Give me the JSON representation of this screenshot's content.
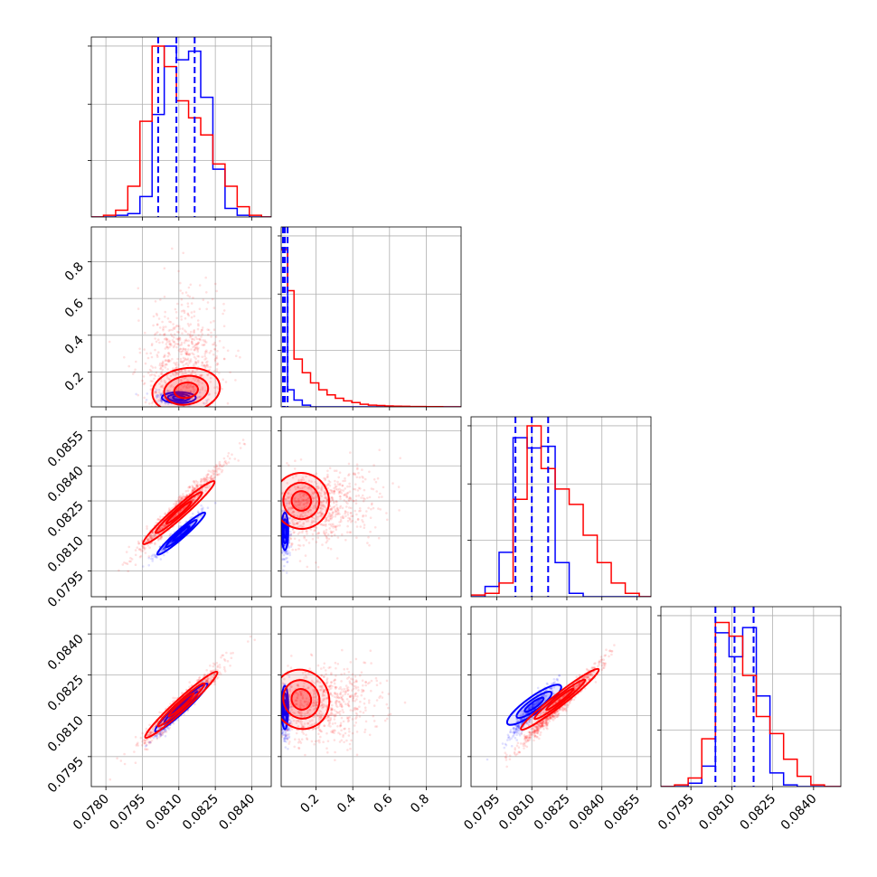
{
  "chart_data": {
    "type": "corner",
    "grid": true,
    "series": [
      {
        "color_name": "blue",
        "color": "#0000ff"
      },
      {
        "color_name": "red",
        "color": "#ff0000"
      }
    ],
    "params": [
      {
        "ticks": [
          "0.0780",
          "0.0795",
          "0.0810",
          "0.0825",
          "0.0840"
        ],
        "range": [
          0.0774,
          0.0848
        ]
      },
      {
        "ticks": [
          "0.2",
          "0.4",
          "0.6",
          "0.8"
        ],
        "range": [
          0.01,
          0.99
        ]
      },
      {
        "ticks": [
          "0.0795",
          "0.0810",
          "0.0825",
          "0.0840",
          "0.0855"
        ],
        "range": [
          0.0784,
          0.0861
        ]
      },
      {
        "ticks": [
          "0.0795",
          "0.0810",
          "0.0825",
          "0.0840"
        ],
        "range": [
          0.0784,
          0.085
        ]
      }
    ],
    "quantile_lines": [
      {
        "param": 0,
        "color": "#0000ff",
        "values": [
          0.08015,
          0.0809,
          0.08165
        ]
      },
      {
        "param": 1,
        "color": "#0000ff",
        "values": [
          0.02,
          0.03,
          0.045
        ]
      },
      {
        "param": 2,
        "color": "#0000ff",
        "values": [
          0.0803,
          0.081,
          0.0817
        ]
      },
      {
        "param": 3,
        "color": "#0000ff",
        "values": [
          0.0804,
          0.0811,
          0.0818
        ]
      }
    ],
    "histograms": [
      {
        "param": 0,
        "edges": [
          0.0774,
          0.0779,
          0.0784,
          0.0789,
          0.0794,
          0.0799,
          0.0804,
          0.0809,
          0.0814,
          0.0819,
          0.0824,
          0.0829,
          0.0834,
          0.0839,
          0.0844,
          0.0848
        ],
        "series": [
          {
            "color": "#0000ff",
            "counts": [
              0,
              0,
              0.01,
              0.02,
              0.12,
              0.6,
              1.0,
              0.92,
              0.97,
              0.7,
              0.28,
              0.05,
              0.01,
              0,
              0
            ]
          },
          {
            "color": "#ff0000",
            "counts": [
              0,
              0.01,
              0.04,
              0.18,
              0.56,
              1.0,
              0.88,
              0.68,
              0.58,
              0.48,
              0.31,
              0.18,
              0.06,
              0.01,
              0
            ]
          }
        ]
      },
      {
        "param": 1,
        "edges": [
          0.01,
          0.045,
          0.08,
          0.125,
          0.17,
          0.215,
          0.26,
          0.305,
          0.35,
          0.395,
          0.44,
          0.485,
          0.53,
          0.575,
          0.62,
          0.665,
          0.71,
          0.755,
          0.8,
          0.845,
          0.89,
          0.935,
          0.99
        ],
        "series": [
          {
            "color": "#0000ff",
            "counts": [
              0.93,
              0.1,
              0.04,
              0.01,
              0,
              0,
              0,
              0,
              0,
              0,
              0,
              0,
              0,
              0,
              0,
              0,
              0,
              0,
              0,
              0,
              0,
              0
            ]
          },
          {
            "color": "#ff0000",
            "counts": [
              0.92,
              0.68,
              0.28,
              0.2,
              0.14,
              0.1,
              0.07,
              0.05,
              0.035,
              0.025,
              0.015,
              0.01,
              0.008,
              0.005,
              0.004,
              0.003,
              0.002,
              0.002,
              0.001,
              0.001,
              0,
              0
            ]
          }
        ]
      },
      {
        "param": 2,
        "edges": [
          0.0784,
          0.079,
          0.0796,
          0.0802,
          0.0808,
          0.0814,
          0.082,
          0.0826,
          0.0832,
          0.0838,
          0.0844,
          0.085,
          0.0856,
          0.0861
        ],
        "series": [
          {
            "color": "#0000ff",
            "counts": [
              0,
              0.06,
              0.26,
              0.93,
              0.87,
              0.88,
              0.2,
              0.02,
              0,
              0,
              0,
              0,
              0
            ]
          },
          {
            "color": "#ff0000",
            "counts": [
              0.01,
              0.02,
              0.08,
              0.57,
              1.0,
              0.75,
              0.63,
              0.54,
              0.36,
              0.2,
              0.08,
              0.02,
              0
            ]
          }
        ]
      },
      {
        "param": 3,
        "edges": [
          0.0784,
          0.0789,
          0.0794,
          0.0799,
          0.0804,
          0.0809,
          0.0814,
          0.0819,
          0.0824,
          0.0829,
          0.0834,
          0.0839,
          0.0844,
          0.085
        ],
        "series": [
          {
            "color": "#0000ff",
            "counts": [
              0,
              0,
              0.02,
              0.12,
              0.9,
              0.76,
              0.93,
              0.53,
              0.08,
              0.01,
              0,
              0,
              0
            ]
          },
          {
            "color": "#ff0000",
            "counts": [
              0,
              0.01,
              0.05,
              0.28,
              0.96,
              0.88,
              0.65,
              0.41,
              0.31,
              0.16,
              0.06,
              0.01,
              0
            ]
          }
        ]
      }
    ],
    "scatter_clouds": [
      {
        "row": 1,
        "col": 0,
        "color": "#0000ff",
        "mean": [
          0.0809,
          0.06
        ],
        "sd": [
          0.00045,
          0.02
        ],
        "corr": 0.0,
        "n": 260
      },
      {
        "row": 1,
        "col": 0,
        "color": "#ff0000",
        "mean": [
          0.0811,
          0.22
        ],
        "sd": [
          0.00085,
          0.18
        ],
        "corr": 0.1,
        "n": 750
      },
      {
        "row": 2,
        "col": 0,
        "color": "#0000ff",
        "mean": [
          0.0809,
          0.081
        ],
        "sd": [
          0.00045,
          0.00045
        ],
        "corr": 0.97,
        "n": 420
      },
      {
        "row": 2,
        "col": 0,
        "color": "#ff0000",
        "mean": [
          0.08105,
          0.0822
        ],
        "sd": [
          0.00085,
          0.0009
        ],
        "corr": 0.97,
        "n": 850
      },
      {
        "row": 2,
        "col": 1,
        "color": "#0000ff",
        "mean": [
          0.03,
          0.0811
        ],
        "sd": [
          0.015,
          0.0005
        ],
        "corr": 0.0,
        "n": 320
      },
      {
        "row": 2,
        "col": 1,
        "color": "#ff0000",
        "mean": [
          0.22,
          0.0822
        ],
        "sd": [
          0.15,
          0.0008
        ],
        "corr": 0.25,
        "n": 780
      },
      {
        "row": 3,
        "col": 0,
        "color": "#0000ff",
        "mean": [
          0.0809,
          0.0811
        ],
        "sd": [
          0.00045,
          0.00045
        ],
        "corr": 0.96,
        "n": 400
      },
      {
        "row": 3,
        "col": 0,
        "color": "#ff0000",
        "mean": [
          0.0811,
          0.0814
        ],
        "sd": [
          0.00085,
          0.00075
        ],
        "corr": 0.97,
        "n": 850
      },
      {
        "row": 3,
        "col": 1,
        "color": "#0000ff",
        "mean": [
          0.03,
          0.0811
        ],
        "sd": [
          0.015,
          0.0005
        ],
        "corr": 0.0,
        "n": 300
      },
      {
        "row": 3,
        "col": 1,
        "color": "#ff0000",
        "mean": [
          0.22,
          0.0814
        ],
        "sd": [
          0.15,
          0.0007
        ],
        "corr": 0.25,
        "n": 760
      },
      {
        "row": 3,
        "col": 2,
        "color": "#0000ff",
        "mean": [
          0.0809,
          0.0811
        ],
        "sd": [
          0.00045,
          0.00048
        ],
        "corr": 0.93,
        "n": 450
      },
      {
        "row": 3,
        "col": 2,
        "color": "#ff0000",
        "mean": [
          0.0822,
          0.0814
        ],
        "sd": [
          0.00085,
          0.00075
        ],
        "corr": 0.98,
        "n": 900
      }
    ],
    "contours": [
      {
        "row": 1,
        "col": 0,
        "color": "#0000ff",
        "center": [
          0.081,
          0.06
        ],
        "radii": [
          0.0007,
          0.03
        ],
        "angle": 0,
        "scales": [
          1.0,
          0.65,
          0.35
        ]
      },
      {
        "row": 1,
        "col": 0,
        "color": "#ff0000",
        "center": [
          0.0813,
          0.1
        ],
        "radii": [
          0.0014,
          0.12
        ],
        "angle": 0.15,
        "scales": [
          1.0,
          0.65,
          0.35
        ]
      },
      {
        "row": 2,
        "col": 0,
        "color": "#0000ff",
        "center": [
          0.0811,
          0.0811
        ],
        "radii": [
          0.0013,
          0.00018
        ],
        "angle": 0.72,
        "scales": [
          1.0,
          0.65,
          0.35
        ]
      },
      {
        "row": 2,
        "col": 0,
        "color": "#ff0000",
        "center": [
          0.081,
          0.082
        ],
        "radii": [
          0.00195,
          0.00025
        ],
        "angle": 0.72,
        "scales": [
          1.0,
          0.65,
          0.35
        ]
      },
      {
        "row": 2,
        "col": 1,
        "color": "#0000ff",
        "center": [
          0.03,
          0.0812
        ],
        "radii": [
          0.018,
          0.0008
        ],
        "angle": 0,
        "scales": [
          1.0,
          0.65,
          0.35
        ]
      },
      {
        "row": 2,
        "col": 1,
        "color": "#ff0000",
        "center": [
          0.12,
          0.0825
        ],
        "radii": [
          0.15,
          0.0012
        ],
        "angle": 0.4,
        "scales": [
          1.0,
          0.65,
          0.35
        ]
      },
      {
        "row": 3,
        "col": 0,
        "color": "#0000ff",
        "center": [
          0.0811,
          0.0813
        ],
        "radii": [
          0.00145,
          0.00018
        ],
        "angle": 0.74,
        "scales": [
          1.0,
          0.65,
          0.35
        ]
      },
      {
        "row": 3,
        "col": 0,
        "color": "#ff0000",
        "center": [
          0.0811,
          0.0814
        ],
        "radii": [
          0.002,
          0.00022
        ],
        "angle": 0.74,
        "scales": [
          1.0,
          0.65,
          0.35
        ]
      },
      {
        "row": 3,
        "col": 1,
        "color": "#0000ff",
        "center": [
          0.03,
          0.0813
        ],
        "radii": [
          0.018,
          0.0008
        ],
        "angle": 0,
        "scales": [
          1.0,
          0.65,
          0.35
        ]
      },
      {
        "row": 3,
        "col": 1,
        "color": "#ff0000",
        "center": [
          0.12,
          0.0816
        ],
        "radii": [
          0.15,
          0.0011
        ],
        "angle": 0.4,
        "scales": [
          1.0,
          0.65,
          0.35
        ]
      },
      {
        "row": 3,
        "col": 2,
        "color": "#0000ff",
        "center": [
          0.0811,
          0.0814
        ],
        "radii": [
          0.0014,
          0.0003
        ],
        "angle": 0.62,
        "scales": [
          1.0,
          0.65,
          0.35
        ]
      },
      {
        "row": 3,
        "col": 2,
        "color": "#ff0000",
        "center": [
          0.0822,
          0.0816
        ],
        "radii": [
          0.0021,
          0.00022
        ],
        "angle": 0.66,
        "scales": [
          1.0,
          0.65,
          0.35
        ]
      }
    ]
  }
}
